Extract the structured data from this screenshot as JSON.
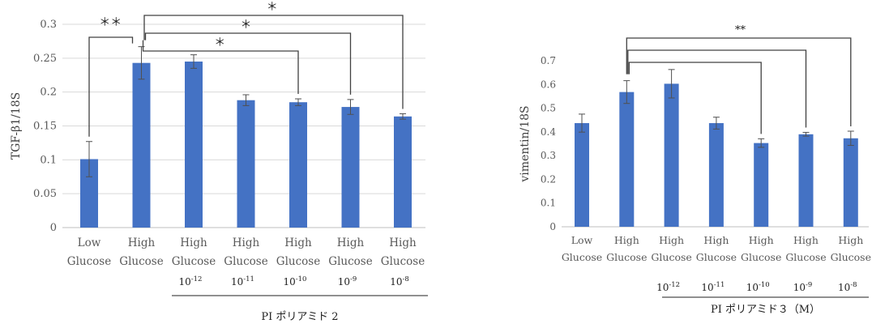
{
  "chart_data": [
    {
      "type": "bar",
      "categories": [
        [
          "Low",
          "Glucose"
        ],
        [
          "High",
          "Glucose"
        ],
        [
          "High",
          "Glucose"
        ],
        [
          "High",
          "Glucose"
        ],
        [
          "High",
          "Glucose"
        ],
        [
          "High",
          "Glucose"
        ],
        [
          "High",
          "Glucose"
        ]
      ],
      "values": [
        0.101,
        0.243,
        0.245,
        0.188,
        0.185,
        0.178,
        0.164
      ],
      "errors": [
        0.026,
        0.024,
        0.01,
        0.008,
        0.005,
        0.011,
        0.004
      ],
      "ylabel": "TGF-β1/18S",
      "ylim": [
        0,
        0.3
      ],
      "yticks": [
        "0",
        "0.05",
        "0.1",
        "0.15",
        "0.2",
        "0.25",
        "0.3"
      ],
      "grid": true,
      "concentrations": [
        {
          "base": "10",
          "exp": "-12"
        },
        {
          "base": "10",
          "exp": "-11"
        },
        {
          "base": "10",
          "exp": "-10"
        },
        {
          "base": "10",
          "exp": "-9"
        },
        {
          "base": "10",
          "exp": "-8"
        }
      ],
      "group_label": "PI ポリアミド 2",
      "significance": [
        {
          "from": 0,
          "to": 1,
          "label": "＊＊"
        },
        {
          "from": 1,
          "to": 6,
          "label": "＊"
        },
        {
          "from": 1,
          "to": 5,
          "label": "＊"
        },
        {
          "from": 1,
          "to": 4,
          "label": "＊"
        }
      ]
    },
    {
      "type": "bar",
      "categories": [
        [
          "Low",
          "Glucose"
        ],
        [
          "High",
          "Glucose"
        ],
        [
          "High",
          "Glucose"
        ],
        [
          "High",
          "Glucose"
        ],
        [
          "High",
          "Glucose"
        ],
        [
          "High",
          "Glucose"
        ],
        [
          "High",
          "Glucose"
        ]
      ],
      "values": [
        0.437,
        0.568,
        0.603,
        0.437,
        0.353,
        0.39,
        0.373
      ],
      "errors": [
        0.038,
        0.048,
        0.06,
        0.025,
        0.018,
        0.008,
        0.03
      ],
      "ylabel": "vimentin/18S",
      "ylim": [
        0,
        0.7
      ],
      "yticks": [
        "0",
        "0.1",
        "0.2",
        "0.3",
        "0.4",
        "0.5",
        "0.6",
        "0.7"
      ],
      "grid": false,
      "concentrations": [
        {
          "base": "10",
          "exp": "-12"
        },
        {
          "base": "10",
          "exp": "-11"
        },
        {
          "base": "10",
          "exp": "-10"
        },
        {
          "base": "10",
          "exp": "-9"
        },
        {
          "base": "10",
          "exp": "-8"
        }
      ],
      "group_label": "PI ポリアミド３（M）",
      "significance": [
        {
          "from": 1,
          "to": 6,
          "label": "**"
        },
        {
          "from": 1,
          "to": 5,
          "label": ""
        },
        {
          "from": 1,
          "to": 4,
          "label": ""
        }
      ]
    }
  ],
  "colors": {
    "bar": "#4472c4",
    "axis": "#bfbfbf",
    "grid": "#d9d9d9",
    "text": "#595959",
    "bracket": "#404040"
  }
}
